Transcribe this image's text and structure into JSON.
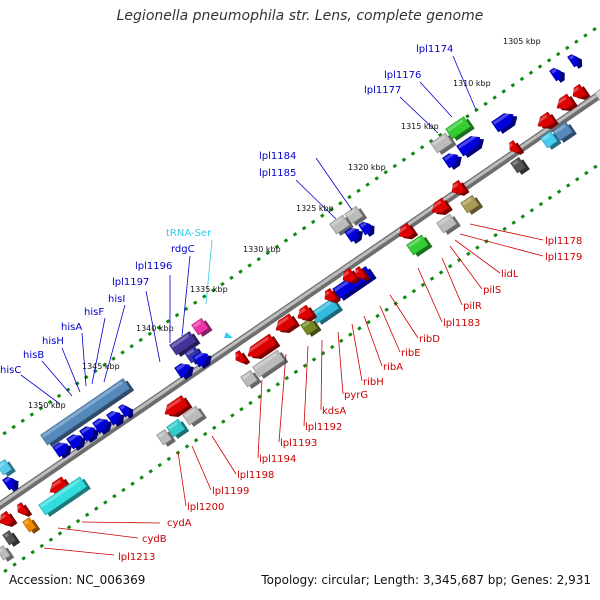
{
  "title": "Legionella pneumophila str. Lens, complete genome",
  "footer": {
    "accession": "Accession: NC_006369",
    "stats": "Topology: circular; Length: 3,345,687 bp; Genes: 2,931"
  },
  "colors": {
    "backbone": "#888888",
    "forward_label": "#0000cc",
    "reverse_label": "#cc0000",
    "trna_label": "#33ccee",
    "tick": "#118811"
  },
  "kbp_ticks": [
    "1305 kbp",
    "1310 kbp",
    "1315 kbp",
    "1320 kbp",
    "1325 kbp",
    "1330 kbp",
    "1335 kbp",
    "1340 kbp",
    "1345 kbp",
    "1350 kbp"
  ],
  "forward_labels": [
    "lpl1174",
    "lpl1176",
    "lpl1177",
    "lpl1184",
    "lpl1185",
    "rdgC",
    "lpl1196",
    "lpl1197",
    "hisI",
    "hisF",
    "hisA",
    "hisH",
    "hisB",
    "hisC"
  ],
  "trna_labels": [
    "tRNA-Ser"
  ],
  "reverse_labels": [
    "lpl1178",
    "lpl1179",
    "lidL",
    "pilS",
    "pilR",
    "lpl1183",
    "ribD",
    "ribE",
    "ribA",
    "ribH",
    "pyrG",
    "kdsA",
    "lpl1192",
    "lpl1193",
    "lpl1194",
    "lpl1198",
    "lpl1199",
    "lpl1200",
    "cydA",
    "cydB",
    "lpl1213"
  ]
}
